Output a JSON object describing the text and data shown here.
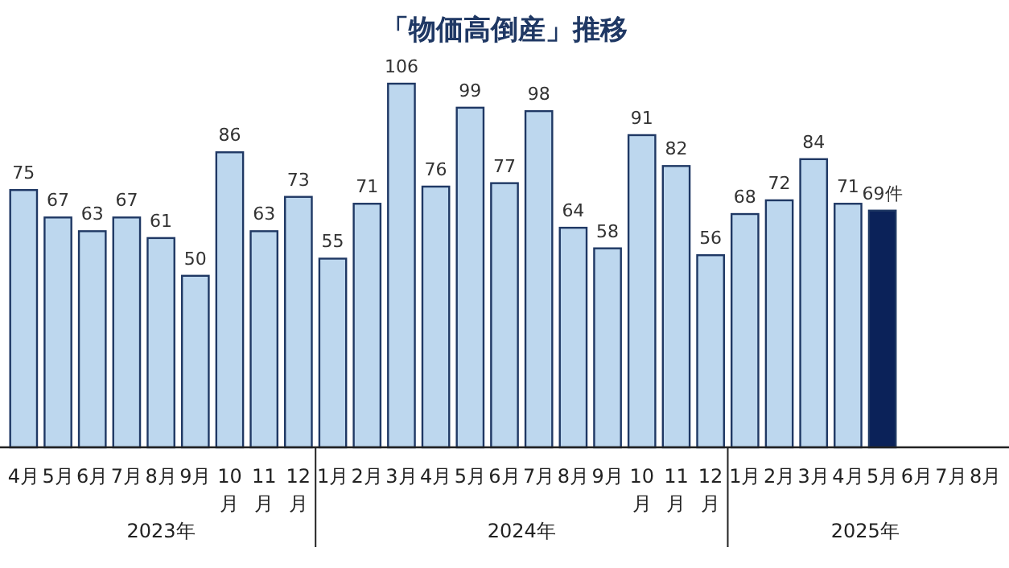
{
  "chart_data": {
    "type": "bar",
    "title": "「物価高倒産」推移",
    "categories": [
      "4月",
      "5月",
      "6月",
      "7月",
      "8月",
      "9月",
      "10月",
      "11月",
      "12月",
      "1月",
      "2月",
      "3月",
      "4月",
      "5月",
      "6月",
      "7月",
      "8月",
      "9月",
      "10月",
      "11月",
      "12月",
      "1月",
      "2月",
      "3月",
      "4月",
      "5月",
      "6月",
      "7月",
      "8月"
    ],
    "values": [
      75,
      67,
      63,
      67,
      61,
      50,
      86,
      63,
      73,
      55,
      71,
      106,
      76,
      99,
      77,
      98,
      64,
      58,
      91,
      82,
      56,
      68,
      72,
      84,
      71,
      69,
      null,
      null,
      null
    ],
    "colors": [
      "#bdd7ee",
      "#bdd7ee",
      "#bdd7ee",
      "#bdd7ee",
      "#bdd7ee",
      "#bdd7ee",
      "#bdd7ee",
      "#bdd7ee",
      "#bdd7ee",
      "#bdd7ee",
      "#bdd7ee",
      "#bdd7ee",
      "#bdd7ee",
      "#bdd7ee",
      "#bdd7ee",
      "#bdd7ee",
      "#bdd7ee",
      "#bdd7ee",
      "#bdd7ee",
      "#bdd7ee",
      "#bdd7ee",
      "#bdd7ee",
      "#bdd7ee",
      "#bdd7ee",
      "#bdd7ee",
      "#0b2259",
      null,
      null,
      null
    ],
    "value_labels": [
      "75",
      "67",
      "63",
      "67",
      "61",
      "50",
      "86",
      "63",
      "73",
      "55",
      "71",
      "106",
      "76",
      "99",
      "77",
      "98",
      "64",
      "58",
      "91",
      "82",
      "56",
      "68",
      "72",
      "84",
      "71",
      "69件",
      null,
      null,
      null
    ],
    "annotations": [
      "2023年",
      "2024年",
      "2025年"
    ]
  }
}
